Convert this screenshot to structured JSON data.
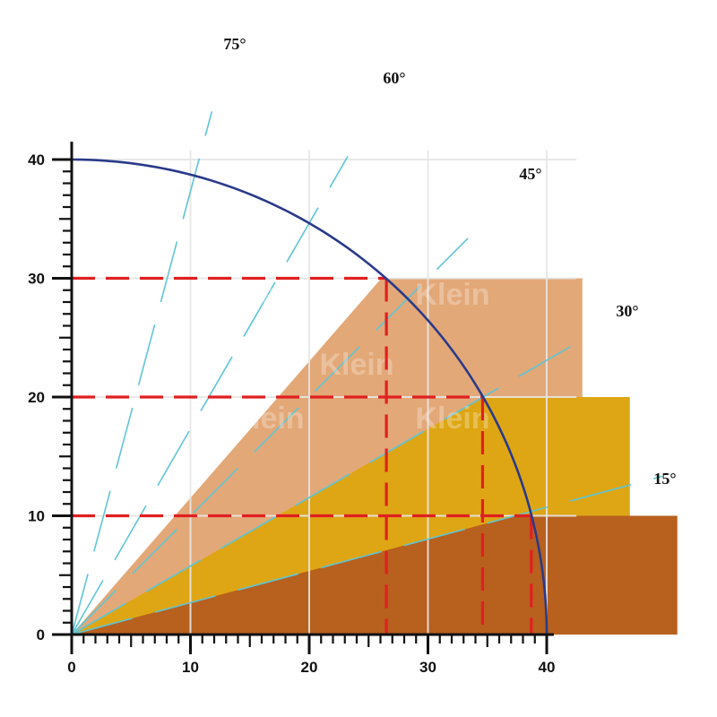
{
  "chart_data": {
    "type": "area",
    "title": "",
    "xlabel": "",
    "ylabel": "",
    "xlim": [
      0,
      40
    ],
    "ylim": [
      0,
      40
    ],
    "x_ticks": [
      "0",
      "10",
      "20",
      "30",
      "40"
    ],
    "y_ticks": [
      "0",
      "10",
      "20",
      "30",
      "40"
    ],
    "grid": true,
    "arc": {
      "radius": 40,
      "color": "#2a3a8a"
    },
    "regions": [
      {
        "top_y": 10,
        "right_x": 51,
        "slope_deg": 15,
        "color": "#b8601e"
      },
      {
        "top_y": 20,
        "right_x": 47,
        "slope_deg": 30,
        "color": "#dea614"
      },
      {
        "top_y": 30,
        "right_x": 43,
        "slope_deg": 49,
        "color": "#e3a877"
      }
    ],
    "marker_lines": [
      {
        "x": 26.5,
        "y": 30
      },
      {
        "x": 34.6,
        "y": 20
      },
      {
        "x": 38.7,
        "y": 10
      }
    ],
    "marker_color": "#e02020",
    "angle_rays": [
      {
        "label": "75°",
        "deg": 75
      },
      {
        "label": "60°",
        "deg": 60
      },
      {
        "label": "45°",
        "deg": 45
      },
      {
        "label": "30°",
        "deg": 30
      },
      {
        "label": "15°",
        "deg": 15
      }
    ],
    "ray_color": "#5ec5d6",
    "watermark": "Klein"
  }
}
